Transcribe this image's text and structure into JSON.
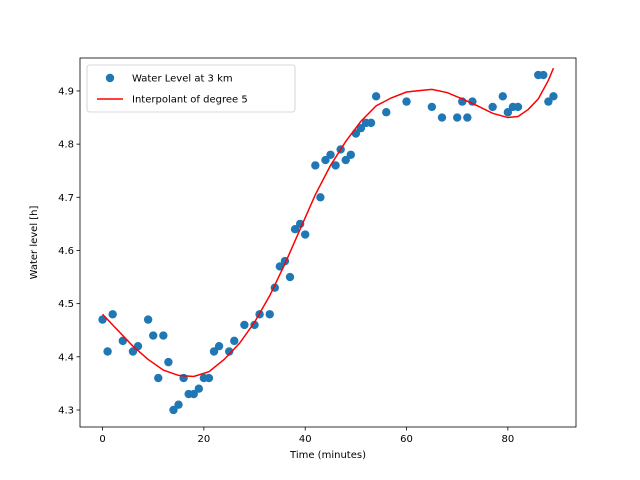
{
  "chart_data": {
    "type": "scatter",
    "title": "",
    "xlabel": "Time (minutes)",
    "ylabel": "Water level [h]",
    "xlim": [
      -4.45,
      93.45
    ],
    "ylim": [
      4.268,
      4.962
    ],
    "xticks": [
      0,
      20,
      40,
      60,
      80
    ],
    "yticks": [
      4.3,
      4.4,
      4.5,
      4.6,
      4.7,
      4.8,
      4.9
    ],
    "xtick_labels": [
      "0",
      "20",
      "40",
      "60",
      "80"
    ],
    "ytick_labels": [
      "4.3",
      "4.4",
      "4.5",
      "4.6",
      "4.7",
      "4.8",
      "4.9"
    ],
    "grid": false,
    "legend_position": "upper-left",
    "series": [
      {
        "name": "Water Level at 3 km",
        "kind": "scatter",
        "color": "#1f77b4",
        "points": [
          [
            0,
            4.47
          ],
          [
            1,
            4.41
          ],
          [
            2,
            4.48
          ],
          [
            4,
            4.43
          ],
          [
            6,
            4.41
          ],
          [
            7,
            4.42
          ],
          [
            9,
            4.47
          ],
          [
            10,
            4.44
          ],
          [
            11,
            4.36
          ],
          [
            12,
            4.44
          ],
          [
            13,
            4.39
          ],
          [
            14,
            4.3
          ],
          [
            15,
            4.31
          ],
          [
            16,
            4.36
          ],
          [
            17,
            4.33
          ],
          [
            18,
            4.33
          ],
          [
            19,
            4.34
          ],
          [
            20,
            4.36
          ],
          [
            21,
            4.36
          ],
          [
            22,
            4.41
          ],
          [
            23,
            4.42
          ],
          [
            25,
            4.41
          ],
          [
            26,
            4.43
          ],
          [
            28,
            4.46
          ],
          [
            30,
            4.46
          ],
          [
            31,
            4.48
          ],
          [
            33,
            4.48
          ],
          [
            34,
            4.53
          ],
          [
            35,
            4.57
          ],
          [
            36,
            4.58
          ],
          [
            37,
            4.55
          ],
          [
            38,
            4.64
          ],
          [
            39,
            4.65
          ],
          [
            40,
            4.63
          ],
          [
            42,
            4.76
          ],
          [
            43,
            4.7
          ],
          [
            44,
            4.77
          ],
          [
            45,
            4.78
          ],
          [
            46,
            4.76
          ],
          [
            47,
            4.79
          ],
          [
            48,
            4.77
          ],
          [
            49,
            4.78
          ],
          [
            50,
            4.82
          ],
          [
            51,
            4.83
          ],
          [
            52,
            4.84
          ],
          [
            53,
            4.84
          ],
          [
            54,
            4.89
          ],
          [
            56,
            4.86
          ],
          [
            60,
            4.88
          ],
          [
            65,
            4.87
          ],
          [
            67,
            4.85
          ],
          [
            70,
            4.85
          ],
          [
            71,
            4.88
          ],
          [
            72,
            4.85
          ],
          [
            73,
            4.88
          ],
          [
            77,
            4.87
          ],
          [
            79,
            4.89
          ],
          [
            80,
            4.86
          ],
          [
            81,
            4.87
          ],
          [
            82,
            4.87
          ],
          [
            86,
            4.93
          ],
          [
            87,
            4.93
          ],
          [
            88,
            4.88
          ],
          [
            89,
            4.89
          ]
        ]
      },
      {
        "name": "Interpolant of degree 5",
        "kind": "line",
        "color": "#ff0000",
        "points": [
          [
            0,
            4.48
          ],
          [
            3,
            4.45
          ],
          [
            6,
            4.42
          ],
          [
            9,
            4.395
          ],
          [
            12,
            4.375
          ],
          [
            15,
            4.365
          ],
          [
            18,
            4.363
          ],
          [
            21,
            4.372
          ],
          [
            24,
            4.395
          ],
          [
            27,
            4.425
          ],
          [
            30,
            4.465
          ],
          [
            33,
            4.515
          ],
          [
            36,
            4.575
          ],
          [
            39,
            4.64
          ],
          [
            42,
            4.705
          ],
          [
            45,
            4.76
          ],
          [
            48,
            4.805
          ],
          [
            51,
            4.843
          ],
          [
            54,
            4.872
          ],
          [
            57,
            4.887
          ],
          [
            60,
            4.898
          ],
          [
            63,
            4.901
          ],
          [
            65,
            4.903
          ],
          [
            68,
            4.897
          ],
          [
            71,
            4.885
          ],
          [
            74,
            4.872
          ],
          [
            77,
            4.858
          ],
          [
            80,
            4.85
          ],
          [
            82,
            4.852
          ],
          [
            84,
            4.865
          ],
          [
            86,
            4.885
          ],
          [
            88,
            4.92
          ],
          [
            89,
            4.943
          ]
        ]
      }
    ]
  }
}
